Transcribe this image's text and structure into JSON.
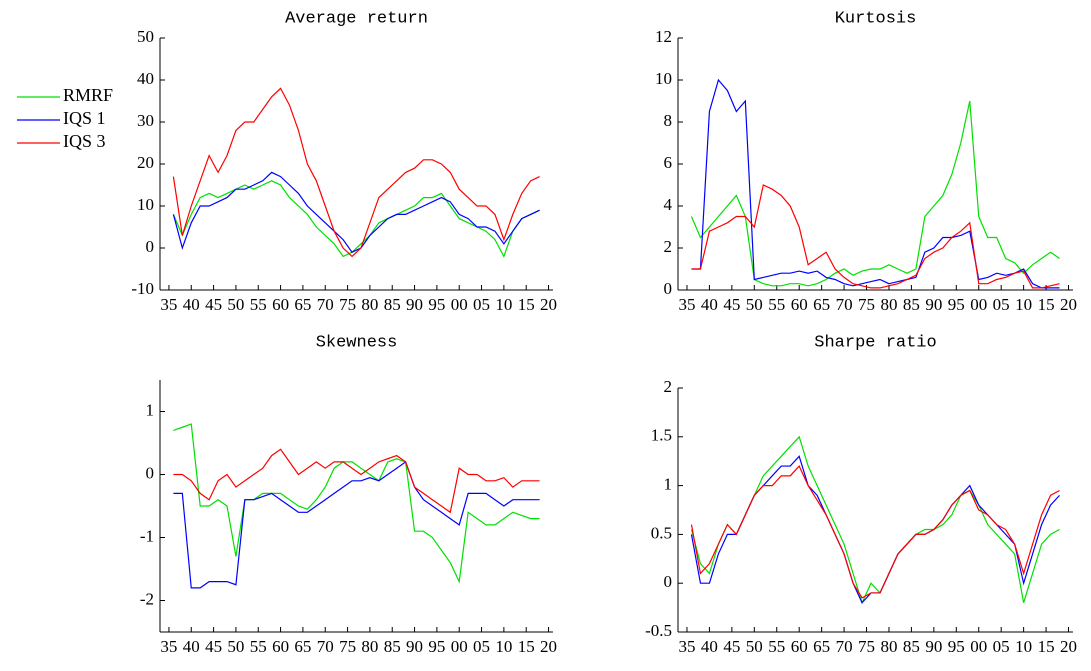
{
  "chart_data": [
    {
      "type": "line",
      "title": "Average return",
      "x": [
        1936,
        1938,
        1940,
        1942,
        1944,
        1946,
        1948,
        1950,
        1952,
        1954,
        1956,
        1958,
        1960,
        1962,
        1964,
        1966,
        1968,
        1970,
        1972,
        1974,
        1976,
        1978,
        1980,
        1982,
        1984,
        1986,
        1988,
        1990,
        1992,
        1994,
        1996,
        1998,
        2000,
        2002,
        2004,
        2006,
        2008,
        2010,
        2012,
        2014,
        2016,
        2018
      ],
      "xlim": [
        1933,
        2021
      ],
      "xticks": [
        {
          "value": 1935,
          "label": "35"
        },
        {
          "value": 1940,
          "label": "40"
        },
        {
          "value": 1945,
          "label": "45"
        },
        {
          "value": 1950,
          "label": "50"
        },
        {
          "value": 1955,
          "label": "55"
        },
        {
          "value": 1960,
          "label": "60"
        },
        {
          "value": 1965,
          "label": "65"
        },
        {
          "value": 1970,
          "label": "70"
        },
        {
          "value": 1975,
          "label": "75"
        },
        {
          "value": 1980,
          "label": "80"
        },
        {
          "value": 1985,
          "label": "85"
        },
        {
          "value": 1990,
          "label": "90"
        },
        {
          "value": 1995,
          "label": "95"
        },
        {
          "value": 2000,
          "label": "00"
        },
        {
          "value": 2005,
          "label": "05"
        },
        {
          "value": 2010,
          "label": "10"
        },
        {
          "value": 2015,
          "label": "15"
        },
        {
          "value": 2020,
          "label": "20"
        }
      ],
      "ylim": [
        -10,
        50
      ],
      "yticks": [
        -10,
        0,
        10,
        20,
        30,
        40,
        50
      ],
      "legend": "west outside",
      "series": [
        {
          "name": "RMRF",
          "color": "#00e000",
          "values": [
            8,
            3,
            8,
            12,
            13,
            12,
            13,
            14,
            15,
            14,
            15,
            16,
            15,
            12,
            10,
            8,
            5,
            3,
            1,
            -2,
            -1,
            1,
            3,
            6,
            7,
            8,
            9,
            10,
            12,
            12,
            13,
            10,
            7,
            6,
            5,
            4,
            2,
            -2,
            4,
            7,
            8,
            9
          ]
        },
        {
          "name": "IQS 1",
          "color": "#0000ff",
          "values": [
            8,
            0,
            6,
            10,
            10,
            11,
            12,
            14,
            14,
            15,
            16,
            18,
            17,
            15,
            13,
            10,
            8,
            6,
            4,
            2,
            -1,
            0,
            3,
            5,
            7,
            8,
            8,
            9,
            10,
            11,
            12,
            11,
            8,
            7,
            5,
            5,
            4,
            1,
            4,
            7,
            8,
            9
          ]
        },
        {
          "name": "IQS 3",
          "color": "#ff0000",
          "values": [
            17,
            3,
            10,
            16,
            22,
            18,
            22,
            28,
            30,
            30,
            33,
            36,
            38,
            34,
            28,
            20,
            16,
            10,
            4,
            0,
            -2,
            0,
            6,
            12,
            14,
            16,
            18,
            19,
            21,
            21,
            20,
            18,
            14,
            12,
            10,
            10,
            8,
            2,
            8,
            13,
            16,
            17
          ]
        }
      ]
    },
    {
      "type": "line",
      "title": "Kurtosis",
      "x": [
        1936,
        1938,
        1940,
        1942,
        1944,
        1946,
        1948,
        1950,
        1952,
        1954,
        1956,
        1958,
        1960,
        1962,
        1964,
        1966,
        1968,
        1970,
        1972,
        1974,
        1976,
        1978,
        1980,
        1982,
        1984,
        1986,
        1988,
        1990,
        1992,
        1994,
        1996,
        1998,
        2000,
        2002,
        2004,
        2006,
        2008,
        2010,
        2012,
        2014,
        2016,
        2018
      ],
      "xlim": [
        1933,
        2021
      ],
      "xticks": [
        {
          "value": 1935,
          "label": "35"
        },
        {
          "value": 1940,
          "label": "40"
        },
        {
          "value": 1945,
          "label": "45"
        },
        {
          "value": 1950,
          "label": "50"
        },
        {
          "value": 1955,
          "label": "55"
        },
        {
          "value": 1960,
          "label": "60"
        },
        {
          "value": 1965,
          "label": "65"
        },
        {
          "value": 1970,
          "label": "70"
        },
        {
          "value": 1975,
          "label": "75"
        },
        {
          "value": 1980,
          "label": "80"
        },
        {
          "value": 1985,
          "label": "85"
        },
        {
          "value": 1990,
          "label": "90"
        },
        {
          "value": 1995,
          "label": "95"
        },
        {
          "value": 2000,
          "label": "00"
        },
        {
          "value": 2005,
          "label": "05"
        },
        {
          "value": 2010,
          "label": "10"
        },
        {
          "value": 2015,
          "label": "15"
        },
        {
          "value": 2020,
          "label": "20"
        }
      ],
      "ylim": [
        0,
        12
      ],
      "yticks": [
        0,
        2,
        4,
        6,
        8,
        10,
        12
      ],
      "series": [
        {
          "color": "#00e000",
          "values": [
            3.5,
            2.5,
            3.0,
            3.5,
            4.0,
            4.5,
            3.5,
            0.5,
            0.3,
            0.2,
            0.2,
            0.3,
            0.3,
            0.2,
            0.3,
            0.5,
            0.8,
            1.0,
            0.7,
            0.9,
            1.0,
            1.0,
            1.2,
            1.0,
            0.8,
            1.0,
            3.5,
            4.0,
            4.5,
            5.5,
            7.0,
            9.0,
            3.5,
            2.5,
            2.5,
            1.5,
            1.3,
            0.8,
            1.2,
            1.5,
            1.8,
            1.5
          ]
        },
        {
          "color": "#0000ff",
          "values": [
            1.0,
            1.0,
            8.5,
            10.0,
            9.5,
            8.5,
            9.0,
            0.5,
            0.6,
            0.7,
            0.8,
            0.8,
            0.9,
            0.8,
            0.9,
            0.6,
            0.5,
            0.3,
            0.2,
            0.3,
            0.4,
            0.5,
            0.3,
            0.4,
            0.5,
            0.6,
            1.8,
            2.0,
            2.5,
            2.5,
            2.6,
            2.8,
            0.5,
            0.6,
            0.8,
            0.7,
            0.8,
            1.0,
            0.3,
            0.1,
            0.1,
            0.1
          ]
        },
        {
          "color": "#ff0000",
          "values": [
            1.0,
            1.0,
            2.8,
            3.0,
            3.2,
            3.5,
            3.5,
            3.0,
            5.0,
            4.8,
            4.5,
            4.0,
            3.0,
            1.2,
            1.5,
            1.8,
            1.0,
            0.6,
            0.3,
            0.2,
            0.1,
            0.1,
            0.2,
            0.3,
            0.5,
            0.7,
            1.5,
            1.8,
            2.0,
            2.5,
            2.8,
            3.2,
            0.3,
            0.3,
            0.5,
            0.6,
            0.8,
            0.9,
            0.1,
            0.1,
            0.2,
            0.3
          ]
        }
      ]
    },
    {
      "type": "line",
      "title": "Skewness",
      "x": [
        1936,
        1938,
        1940,
        1942,
        1944,
        1946,
        1948,
        1950,
        1952,
        1954,
        1956,
        1958,
        1960,
        1962,
        1964,
        1966,
        1968,
        1970,
        1972,
        1974,
        1976,
        1978,
        1980,
        1982,
        1984,
        1986,
        1988,
        1990,
        1992,
        1994,
        1996,
        1998,
        2000,
        2002,
        2004,
        2006,
        2008,
        2010,
        2012,
        2014,
        2016,
        2018
      ],
      "xlim": [
        1933,
        2021
      ],
      "xticks": [
        {
          "value": 1935,
          "label": "35"
        },
        {
          "value": 1940,
          "label": "40"
        },
        {
          "value": 1945,
          "label": "45"
        },
        {
          "value": 1950,
          "label": "50"
        },
        {
          "value": 1955,
          "label": "55"
        },
        {
          "value": 1960,
          "label": "60"
        },
        {
          "value": 1965,
          "label": "65"
        },
        {
          "value": 1970,
          "label": "70"
        },
        {
          "value": 1975,
          "label": "75"
        },
        {
          "value": 1980,
          "label": "80"
        },
        {
          "value": 1985,
          "label": "85"
        },
        {
          "value": 1990,
          "label": "90"
        },
        {
          "value": 1995,
          "label": "95"
        },
        {
          "value": 2000,
          "label": "00"
        },
        {
          "value": 2005,
          "label": "05"
        },
        {
          "value": 2010,
          "label": "10"
        },
        {
          "value": 2015,
          "label": "15"
        },
        {
          "value": 2020,
          "label": "20"
        }
      ],
      "ylim": [
        -2.5,
        1.5
      ],
      "yticks": [
        -2,
        -1,
        0,
        1
      ],
      "series": [
        {
          "color": "#00e000",
          "values": [
            0.7,
            0.75,
            0.8,
            -0.5,
            -0.5,
            -0.4,
            -0.5,
            -1.3,
            -0.4,
            -0.4,
            -0.3,
            -0.3,
            -0.3,
            -0.4,
            -0.5,
            -0.55,
            -0.4,
            -0.2,
            0.1,
            0.2,
            0.2,
            0.1,
            0.0,
            -0.1,
            0.2,
            0.25,
            0.2,
            -0.9,
            -0.9,
            -1.0,
            -1.2,
            -1.4,
            -1.7,
            -0.6,
            -0.7,
            -0.8,
            -0.8,
            -0.7,
            -0.6,
            -0.65,
            -0.7,
            -0.7
          ]
        },
        {
          "color": "#0000ff",
          "values": [
            -0.3,
            -0.3,
            -1.8,
            -1.8,
            -1.7,
            -1.7,
            -1.7,
            -1.75,
            -0.4,
            -0.4,
            -0.35,
            -0.3,
            -0.4,
            -0.5,
            -0.6,
            -0.6,
            -0.5,
            -0.4,
            -0.3,
            -0.2,
            -0.1,
            -0.1,
            -0.05,
            -0.1,
            0.0,
            0.1,
            0.2,
            -0.2,
            -0.4,
            -0.5,
            -0.6,
            -0.7,
            -0.8,
            -0.3,
            -0.3,
            -0.3,
            -0.4,
            -0.5,
            -0.4,
            -0.4,
            -0.4,
            -0.4
          ]
        },
        {
          "color": "#ff0000",
          "values": [
            0.0,
            0.0,
            -0.1,
            -0.3,
            -0.4,
            -0.1,
            0.0,
            -0.2,
            -0.1,
            0.0,
            0.1,
            0.3,
            0.4,
            0.2,
            0.0,
            0.1,
            0.2,
            0.1,
            0.2,
            0.2,
            0.1,
            0.0,
            0.1,
            0.2,
            0.25,
            0.3,
            0.2,
            -0.2,
            -0.3,
            -0.4,
            -0.5,
            -0.6,
            0.1,
            0.0,
            0.0,
            -0.1,
            -0.1,
            -0.05,
            -0.2,
            -0.1,
            -0.1,
            -0.1
          ]
        }
      ]
    },
    {
      "type": "line",
      "title": "Sharpe ratio",
      "x": [
        1936,
        1938,
        1940,
        1942,
        1944,
        1946,
        1948,
        1950,
        1952,
        1954,
        1956,
        1958,
        1960,
        1962,
        1964,
        1966,
        1968,
        1970,
        1972,
        1974,
        1976,
        1978,
        1980,
        1982,
        1984,
        1986,
        1988,
        1990,
        1992,
        1994,
        1996,
        1998,
        2000,
        2002,
        2004,
        2006,
        2008,
        2010,
        2012,
        2014,
        2016,
        2018
      ],
      "xlim": [
        1933,
        2021
      ],
      "xticks": [
        {
          "value": 1935,
          "label": "35"
        },
        {
          "value": 1940,
          "label": "40"
        },
        {
          "value": 1945,
          "label": "45"
        },
        {
          "value": 1950,
          "label": "50"
        },
        {
          "value": 1955,
          "label": "55"
        },
        {
          "value": 1960,
          "label": "60"
        },
        {
          "value": 1965,
          "label": "65"
        },
        {
          "value": 1970,
          "label": "70"
        },
        {
          "value": 1975,
          "label": "75"
        },
        {
          "value": 1980,
          "label": "80"
        },
        {
          "value": 1985,
          "label": "85"
        },
        {
          "value": 1990,
          "label": "90"
        },
        {
          "value": 1995,
          "label": "95"
        },
        {
          "value": 2000,
          "label": "00"
        },
        {
          "value": 2005,
          "label": "05"
        },
        {
          "value": 2010,
          "label": "10"
        },
        {
          "value": 2015,
          "label": "15"
        },
        {
          "value": 2020,
          "label": "20"
        }
      ],
      "ylim": [
        -0.5,
        2
      ],
      "yticks": [
        -0.5,
        0,
        0.5,
        1,
        1.5,
        2
      ],
      "series": [
        {
          "color": "#00e000",
          "values": [
            0.55,
            0.2,
            0.1,
            0.4,
            0.6,
            0.5,
            0.7,
            0.9,
            1.1,
            1.2,
            1.3,
            1.4,
            1.5,
            1.2,
            1.0,
            0.8,
            0.6,
            0.4,
            0.1,
            -0.2,
            0.0,
            -0.1,
            0.1,
            0.3,
            0.4,
            0.5,
            0.55,
            0.55,
            0.6,
            0.7,
            0.9,
            0.95,
            0.8,
            0.6,
            0.5,
            0.4,
            0.3,
            -0.2,
            0.1,
            0.4,
            0.5,
            0.55
          ]
        },
        {
          "color": "#0000ff",
          "values": [
            0.5,
            0.0,
            0.0,
            0.3,
            0.5,
            0.5,
            0.7,
            0.9,
            1.0,
            1.1,
            1.2,
            1.2,
            1.3,
            1.0,
            0.9,
            0.7,
            0.5,
            0.3,
            0.0,
            -0.2,
            -0.1,
            -0.1,
            0.1,
            0.3,
            0.4,
            0.5,
            0.5,
            0.55,
            0.65,
            0.8,
            0.9,
            1.0,
            0.8,
            0.7,
            0.6,
            0.5,
            0.4,
            0.0,
            0.3,
            0.6,
            0.8,
            0.9
          ]
        },
        {
          "color": "#ff0000",
          "values": [
            0.6,
            0.1,
            0.2,
            0.4,
            0.6,
            0.5,
            0.7,
            0.9,
            1.0,
            1.0,
            1.1,
            1.1,
            1.2,
            1.0,
            0.85,
            0.7,
            0.5,
            0.3,
            0.0,
            -0.15,
            -0.1,
            -0.1,
            0.1,
            0.3,
            0.4,
            0.5,
            0.5,
            0.55,
            0.65,
            0.8,
            0.9,
            0.95,
            0.75,
            0.7,
            0.6,
            0.55,
            0.4,
            0.1,
            0.4,
            0.7,
            0.9,
            0.95
          ]
        }
      ]
    }
  ]
}
